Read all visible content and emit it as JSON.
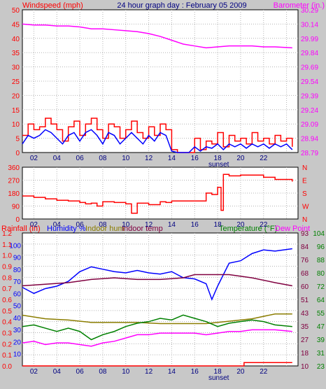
{
  "header": {
    "title": "24 hour graph day : February 05 2009",
    "left_label": "Windspeed (mph)",
    "right_label": "Barometer (in.)"
  },
  "bottom_header": {
    "rainfall": "Rainfall (in)",
    "humidity": "Humidity %",
    "indoor_hum": "Indoor hum",
    "indoor_temp": "Indoor temp",
    "temperature": "Temperature (°F)",
    "dew_point": "Dew Point"
  },
  "sunset_label": "sunset",
  "colors": {
    "background": "#c8c8c8",
    "plot": "#ffffff",
    "windspeed": "#ff0000",
    "wind_avg": "#0000ff",
    "barometer": "#ff00ff",
    "direction": "#ff0000",
    "humidity": "#0000ff",
    "indoor_hum": "#8b7d00",
    "indoor_temp": "#800040",
    "temperature": "#008000",
    "dew_point": "#ff00ff",
    "rainfall": "#ff0000"
  },
  "chart_data": [
    {
      "type": "line",
      "x_ticks": [
        "02",
        "04",
        "06",
        "08",
        "10",
        "12",
        "14",
        "16",
        "18",
        "20",
        "22"
      ],
      "y_left": {
        "label": "Windspeed (mph)",
        "ticks": [
          "0",
          "5",
          "10",
          "15",
          "20",
          "25",
          "30",
          "35",
          "40",
          "45",
          "50"
        ],
        "ylim": [
          0,
          50
        ]
      },
      "y_right": {
        "label": "Barometer (in.)",
        "ticks": [
          "28.79",
          "28.94",
          "29.09",
          "29.24",
          "29.39",
          "29.54",
          "29.69",
          "29.84",
          "29.99",
          "30.14",
          "30.29"
        ],
        "ylim": [
          28.79,
          30.29
        ]
      },
      "series": [
        {
          "name": "Windspeed (mph)",
          "axis": "left",
          "x": [
            0,
            0.5,
            1,
            1.5,
            2,
            2.5,
            3,
            3.5,
            4,
            4.5,
            5,
            5.5,
            6,
            6.5,
            7,
            7.5,
            8,
            8.5,
            9,
            9.5,
            10,
            10.5,
            11,
            11.5,
            12,
            12.5,
            13,
            13.5,
            14,
            14.5,
            15,
            15.5,
            16,
            16.5,
            17,
            17.5,
            18,
            18.5,
            19,
            19.5,
            20,
            20.5,
            21,
            21.5,
            22,
            22.5,
            23,
            23.5
          ],
          "values": [
            6,
            10,
            8,
            9,
            12,
            10,
            8,
            4,
            9,
            11,
            6,
            10,
            12,
            8,
            5,
            10,
            9,
            5,
            8,
            11,
            7,
            5,
            9,
            6,
            10,
            8,
            1,
            0,
            0,
            0,
            5,
            1,
            4,
            3,
            7,
            2,
            6,
            4,
            5,
            3,
            7,
            4,
            5,
            3,
            6,
            4,
            5,
            2
          ]
        },
        {
          "name": "Wind average",
          "axis": "left",
          "x": [
            0,
            0.5,
            1,
            1.5,
            2,
            2.5,
            3,
            3.5,
            4,
            4.5,
            5,
            5.5,
            6,
            6.5,
            7,
            7.5,
            8,
            8.5,
            9,
            9.5,
            10,
            10.5,
            11,
            11.5,
            12,
            12.5,
            13,
            13.5,
            14,
            14.5,
            15,
            15.5,
            16,
            16.5,
            17,
            17.5,
            18,
            18.5,
            19,
            19.5,
            20,
            20.5,
            21,
            21.5,
            22,
            22.5,
            23,
            23.5
          ],
          "values": [
            3,
            6,
            5,
            6,
            8,
            7,
            5,
            3,
            6,
            7,
            4,
            7,
            8,
            6,
            3,
            7,
            6,
            3,
            5,
            7,
            5,
            3,
            6,
            4,
            7,
            6,
            0.5,
            0,
            0,
            0,
            2,
            0.5,
            2,
            1.5,
            3,
            1,
            3,
            2,
            3,
            1.5,
            3,
            2,
            3,
            1.5,
            3,
            2,
            3,
            1
          ]
        },
        {
          "name": "Barometer (in.)",
          "axis": "right",
          "x": [
            0,
            1,
            2,
            3,
            4,
            5,
            6,
            7,
            8,
            9,
            10,
            11,
            12,
            13,
            14,
            15,
            16,
            17,
            18,
            19,
            20,
            21,
            22,
            23.5
          ],
          "values": [
            30.14,
            30.13,
            30.13,
            30.12,
            30.12,
            30.11,
            30.09,
            30.09,
            30.08,
            30.07,
            30.06,
            30.04,
            30.01,
            29.97,
            29.93,
            29.91,
            29.89,
            29.9,
            29.91,
            29.91,
            29.91,
            29.9,
            29.9,
            29.89
          ]
        }
      ]
    },
    {
      "type": "line",
      "x_ticks": [
        "02",
        "04",
        "06",
        "08",
        "10",
        "12",
        "14",
        "16",
        "18",
        "20",
        "22"
      ],
      "y_left": {
        "ticks": [
          "0",
          "90",
          "180",
          "270",
          "360"
        ],
        "ylim": [
          0,
          360
        ]
      },
      "y_right": {
        "ticks": [
          "N",
          "W",
          "S",
          "E",
          "N"
        ]
      },
      "series": [
        {
          "name": "Wind direction",
          "x": [
            0,
            1,
            2,
            3,
            4,
            5,
            5.5,
            6,
            6.5,
            7,
            8,
            9,
            9.5,
            10,
            11,
            12,
            12.5,
            13,
            14,
            15,
            15.5,
            16,
            16.5,
            17,
            17.3,
            17.5,
            18,
            19,
            20,
            21,
            22,
            23.5
          ],
          "values": [
            160,
            150,
            140,
            130,
            125,
            115,
            105,
            110,
            90,
            120,
            115,
            105,
            40,
            110,
            100,
            120,
            115,
            125,
            125,
            125,
            125,
            180,
            170,
            220,
            60,
            310,
            300,
            305,
            305,
            290,
            275,
            260
          ]
        }
      ]
    },
    {
      "type": "line",
      "x_ticks": [
        "02",
        "04",
        "06",
        "08",
        "10",
        "12",
        "14",
        "16",
        "18",
        "20",
        "22"
      ],
      "y_left_rain": {
        "label": "Rainfall (in)",
        "ticks": [
          "0.0",
          "0.1",
          "0.2",
          "0.3",
          "0.4",
          "0.5",
          "0.6",
          "0.7",
          "0.8",
          "0.9",
          "1.0",
          "1.1",
          "1.2"
        ],
        "ylim": [
          0,
          1.2
        ]
      },
      "y_left_hum": {
        "label": "Humidity %",
        "ticks": [
          "10",
          "20",
          "30",
          "40",
          "50",
          "60",
          "70",
          "80",
          "90",
          "100"
        ],
        "ylim": [
          0,
          110
        ]
      },
      "y_right_indoor": {
        "ticks": [
          "10",
          "18",
          "27",
          "35",
          "43",
          "51",
          "60",
          "68",
          "76",
          "84",
          "93"
        ],
        "ylim": [
          10,
          93
        ]
      },
      "y_right_temp": {
        "label": "Temperature (°F)",
        "ticks": [
          "23",
          "31",
          "39",
          "47",
          "55",
          "64",
          "72",
          "80",
          "88",
          "96",
          "104"
        ],
        "ylim": [
          23,
          104
        ]
      },
      "series": [
        {
          "name": "Humidity %",
          "axis": "hum",
          "x": [
            0,
            1,
            2,
            3,
            4,
            5,
            6,
            7,
            8,
            9,
            10,
            11,
            12,
            13,
            14,
            15,
            16,
            16.5,
            17,
            18,
            19,
            20,
            21,
            22,
            23.5
          ],
          "values": [
            65,
            60,
            64,
            66,
            70,
            78,
            82,
            80,
            78,
            77,
            79,
            77,
            76,
            78,
            73,
            72,
            68,
            55,
            66,
            85,
            87,
            93,
            96,
            95,
            97
          ]
        },
        {
          "name": "Indoor hum",
          "axis": "hum",
          "x": [
            0,
            2,
            4,
            6,
            8,
            10,
            12,
            14,
            16,
            18,
            20,
            22,
            23.5
          ],
          "values": [
            42,
            39,
            38,
            36,
            36,
            36,
            35,
            35,
            35,
            37,
            39,
            43,
            43
          ]
        },
        {
          "name": "Indoor temp",
          "axis": "indoor",
          "x": [
            0,
            2,
            4,
            6,
            8,
            10,
            12,
            14,
            15,
            16,
            18,
            20,
            22,
            23.5
          ],
          "values": [
            60,
            61,
            62,
            64,
            65,
            64,
            64,
            65,
            67,
            67,
            67,
            65,
            62,
            60
          ]
        },
        {
          "name": "Temperature (°F)",
          "axis": "temp",
          "x": [
            0,
            1,
            2,
            3,
            4,
            5,
            6,
            7,
            8,
            9,
            10,
            11,
            12,
            13,
            14,
            15,
            16,
            17,
            18,
            19,
            20,
            21,
            22,
            23.5
          ],
          "values": [
            47,
            48,
            46,
            44,
            46,
            44,
            39,
            42,
            44,
            47,
            49,
            50,
            52,
            51,
            54,
            52,
            50,
            47,
            49,
            50,
            51,
            50,
            48,
            47
          ]
        },
        {
          "name": "Dew Point",
          "axis": "temp",
          "x": [
            0,
            1,
            2,
            3,
            4,
            5,
            6,
            7,
            8,
            9,
            10,
            11,
            12,
            13,
            14,
            15,
            16,
            17,
            18,
            19,
            20,
            21,
            22,
            23.5
          ],
          "values": [
            37,
            38,
            36,
            37,
            37,
            36,
            35,
            37,
            38,
            40,
            42,
            42,
            43,
            43,
            43,
            43,
            42,
            43,
            44,
            44,
            45,
            45,
            45,
            44
          ]
        },
        {
          "name": "Rainfall (in)",
          "axis": "rain",
          "x": [
            0,
            19.3,
            19.3,
            23.5
          ],
          "values": [
            0,
            0,
            0.03,
            0.03
          ]
        }
      ]
    }
  ]
}
